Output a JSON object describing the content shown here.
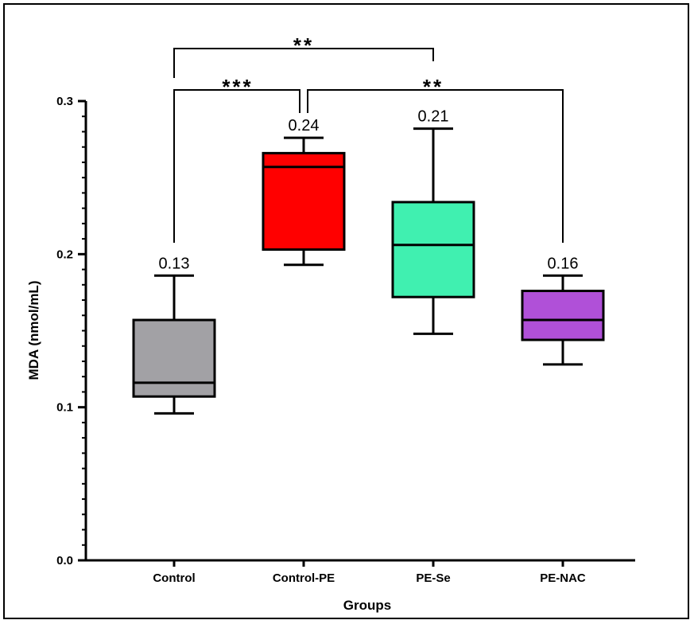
{
  "chart_data": {
    "type": "box",
    "title": "",
    "xlabel": "Groups",
    "ylabel": "MDA (nmol/mL)",
    "ylim": [
      0,
      0.3
    ],
    "yticks": [
      {
        "value": 0.0,
        "label": "0.0"
      },
      {
        "value": 0.1,
        "label": "0.1"
      },
      {
        "value": 0.2,
        "label": "0.2"
      },
      {
        "value": 0.3,
        "label": "0.3"
      }
    ],
    "grid": false,
    "categories": [
      "Control",
      "Control-PE",
      "PE-Se",
      "PE-NAC"
    ],
    "boxes": [
      {
        "category": "Control",
        "min": 0.096,
        "q1": 0.107,
        "median": 0.116,
        "q3": 0.157,
        "max": 0.186,
        "mean_label": "0.13",
        "color": "#a2a1a5"
      },
      {
        "category": "Control-PE",
        "min": 0.193,
        "q1": 0.203,
        "median": 0.257,
        "q3": 0.266,
        "max": 0.276,
        "mean_label": "0.24",
        "color": "#ff0000"
      },
      {
        "category": "PE-Se",
        "min": 0.148,
        "q1": 0.172,
        "median": 0.206,
        "q3": 0.234,
        "max": 0.282,
        "mean_label": "0.21",
        "color": "#40f0b0"
      },
      {
        "category": "PE-NAC",
        "min": 0.128,
        "q1": 0.144,
        "median": 0.157,
        "q3": 0.176,
        "max": 0.186,
        "mean_label": "0.16",
        "color": "#b050d8"
      }
    ],
    "significance": [
      {
        "from": "Control",
        "to": "PE-Se",
        "label": "**"
      },
      {
        "from": "Control",
        "to": "Control-PE",
        "label": "***"
      },
      {
        "from": "Control-PE",
        "to": "PE-NAC",
        "label": "**"
      }
    ]
  }
}
